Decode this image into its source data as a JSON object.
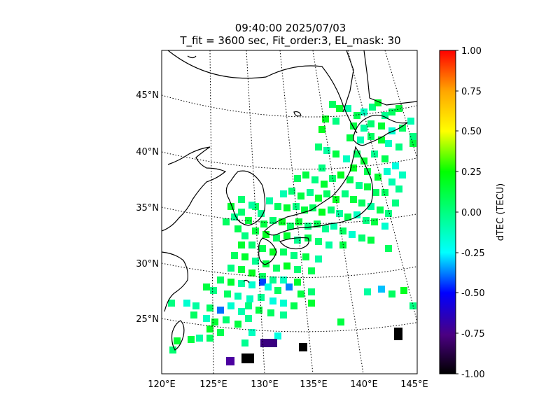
{
  "title_line1": "09:40:00 2025/07/03",
  "title_line2": "T_fit = 3600 sec, Fit_order:3, EL_mask: 30",
  "map": {
    "lat_labels": [
      "45°N",
      "40°N",
      "35°N",
      "30°N",
      "25°N"
    ],
    "lon_labels": [
      "120°E",
      "125°E",
      "130°E",
      "135°E",
      "140°E",
      "145°E"
    ]
  },
  "colorbar": {
    "label": "dTEC (TECU)",
    "range": [
      -1.0,
      1.0
    ],
    "ticks": [
      "1.00",
      "0.75",
      "0.50",
      "0.25",
      "0.00",
      "-0.25",
      "-0.50",
      "-0.75",
      "-1.00"
    ],
    "colors": [
      "#ff0000",
      "#ffa500",
      "#ffff00",
      "#00ff00",
      "#00ffff",
      "#0000ff",
      "#4b0082",
      "#000000"
    ]
  }
}
